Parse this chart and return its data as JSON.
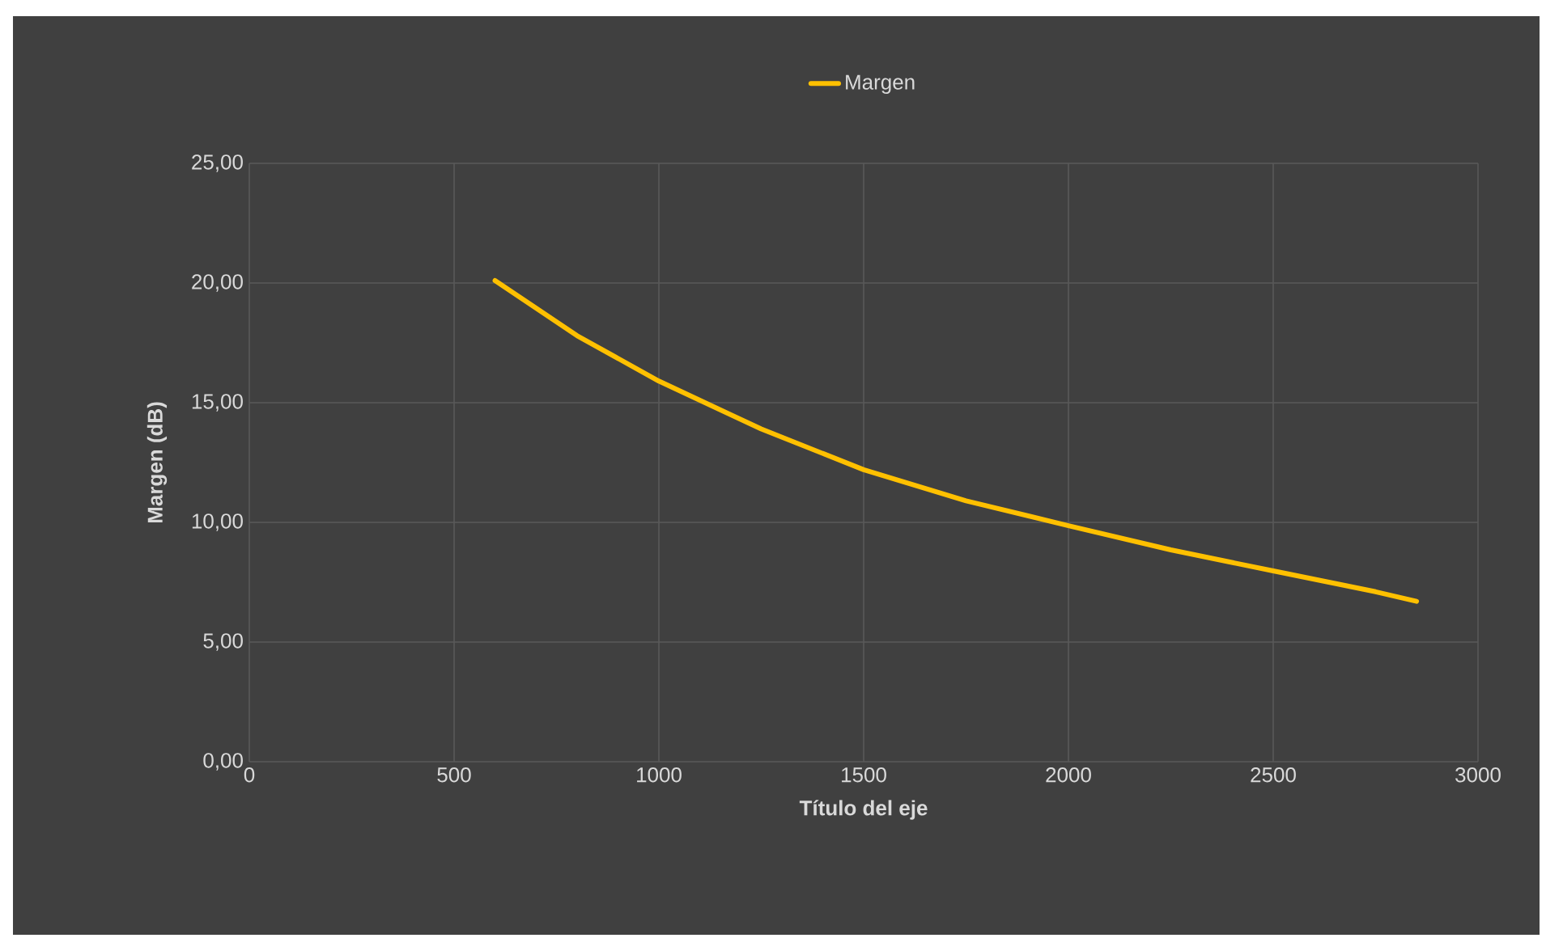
{
  "chart_data": {
    "type": "line",
    "xlabel": "Título del eje",
    "ylabel": "Margen (dB)",
    "x": [
      600,
      800,
      1000,
      1250,
      1500,
      1750,
      2000,
      2250,
      2500,
      2750,
      2850
    ],
    "series": [
      {
        "name": "Margen",
        "color": "#ffc000",
        "values": [
          20.1,
          17.8,
          15.9,
          13.9,
          12.2,
          10.9,
          9.86,
          8.85,
          7.97,
          7.1,
          6.7
        ]
      }
    ],
    "xlim": [
      0,
      3000
    ],
    "xticks": [
      0,
      500,
      1000,
      1500,
      2000,
      2500,
      3000
    ],
    "ylim": [
      0,
      25
    ],
    "yticks": [
      {
        "value": 0,
        "label": "0,00"
      },
      {
        "value": 5,
        "label": "5,00"
      },
      {
        "value": 10,
        "label": "10,00"
      },
      {
        "value": 15,
        "label": "15,00"
      },
      {
        "value": 20,
        "label": "20,00"
      },
      {
        "value": 25,
        "label": "25,00"
      }
    ],
    "grid": true,
    "legend": "top",
    "marker": "none",
    "line_style": "solid"
  }
}
